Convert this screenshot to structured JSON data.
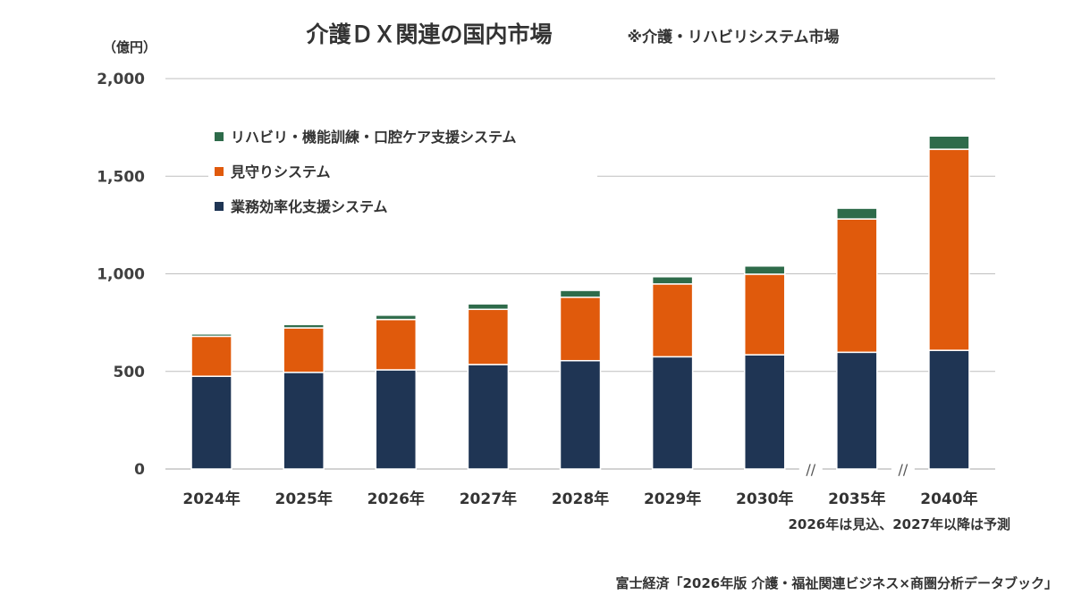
{
  "chart_data": {
    "type": "bar",
    "stacked": true,
    "title": "介護ＤＸ関連の国内市場",
    "subtitle": "※介護・リハビリシステム市場",
    "ylabel": "（億円）",
    "ylim": [
      0,
      2000
    ],
    "yticks": [
      0,
      500,
      1000,
      1500,
      2000
    ],
    "ytick_labels": [
      "0",
      "500",
      "1,000",
      "1,500",
      "2,000"
    ],
    "grid": true,
    "categories": [
      "2024年",
      "2025年",
      "2026年",
      "2027年",
      "2028年",
      "2029年",
      "2030年",
      "2035年",
      "2040年"
    ],
    "axis_breaks": [
      "//",
      "//"
    ],
    "legend_position": "top-left",
    "series": [
      {
        "name": "業務効率化支援システム",
        "color": "#1f3554",
        "values": [
          475,
          495,
          508,
          535,
          555,
          575,
          585,
          598,
          608
        ]
      },
      {
        "name": "見守りシステム",
        "color": "#e05a0c",
        "values": [
          205,
          228,
          258,
          283,
          325,
          373,
          413,
          683,
          1030
        ]
      },
      {
        "name": "リハビリ・機能訓練・口腔ケア支援システム",
        "color": "#2e6b4a",
        "values": [
          12,
          17,
          22,
          28,
          35,
          37,
          42,
          55,
          68
        ]
      }
    ],
    "footnote": "2026年は見込、2027年以降は予測",
    "source": "富士経済「2026年版 介護・福祉関連ビジネス×商圏分析データブック」"
  }
}
